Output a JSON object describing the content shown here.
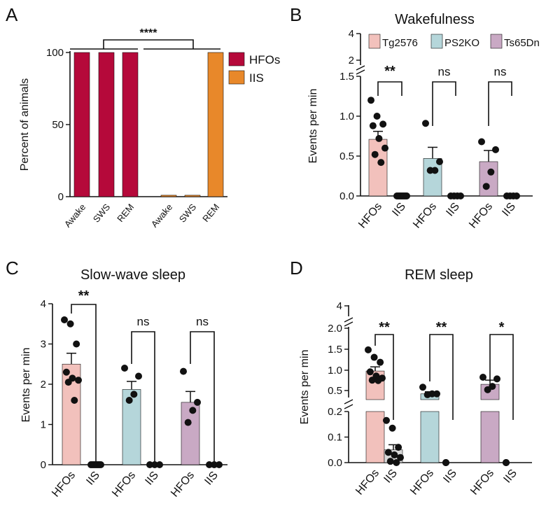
{
  "colors": {
    "Tg2576": "#f2c1bc",
    "PS2KO": "#b5d6da",
    "Ts65Dn": "#c9a9c4",
    "HFOs_A": "#b5093a",
    "IIS_A": "#e8882a",
    "errorbar": "#111111",
    "dot": "#111111"
  },
  "chart_data": [
    {
      "panel": "A",
      "type": "bar",
      "title": "",
      "ylabel": "Percent of animals",
      "ylim": [
        0,
        100
      ],
      "yticks": [
        "0",
        "50",
        "100"
      ],
      "groups": [
        {
          "name": "HFOs",
          "categories": [
            "Awake",
            "SWS",
            "REM"
          ],
          "values": [
            100,
            100,
            100
          ]
        },
        {
          "name": "IIS",
          "categories": [
            "Awake",
            "SWS",
            "REM"
          ],
          "values": [
            1,
            1,
            100
          ]
        }
      ],
      "legend": [
        "HFOs",
        "IIS"
      ],
      "legend_position": "right",
      "significance": "****"
    },
    {
      "panel": "B",
      "type": "bar",
      "title": "Wakefulness",
      "ylabel": "Events per min",
      "yticks_lower": [
        "0.0",
        "0.5",
        "1.0",
        "1.5"
      ],
      "yticks_upper": [
        "2",
        "4"
      ],
      "legend": [
        "Tg2576",
        "PS2KO",
        "Ts65Dn"
      ],
      "legend_position": "top",
      "categories": [
        "HFOs",
        "IIS",
        "HFOs",
        "IIS",
        "HFOs",
        "IIS"
      ],
      "series": [
        {
          "name": "Tg2576",
          "HFOs": 0.71,
          "HFOs_sem": 0.1,
          "IIS": 0.0,
          "HFOs_points": [
            1.2,
            1.0,
            0.9,
            0.88,
            0.72,
            0.6,
            0.52,
            0.42
          ],
          "IIS_points": [
            0,
            0,
            0,
            0,
            0,
            0,
            0,
            0
          ],
          "significance": "**"
        },
        {
          "name": "PS2KO",
          "HFOs": 0.47,
          "HFOs_sem": 0.14,
          "IIS": 0.0,
          "HFOs_points": [
            0.91,
            0.43,
            0.32,
            0.32
          ],
          "IIS_points": [
            0,
            0,
            0,
            0
          ],
          "significance": "ns"
        },
        {
          "name": "Ts65Dn",
          "HFOs": 0.43,
          "HFOs_sem": 0.14,
          "IIS": 0.0,
          "HFOs_points": [
            0.68,
            0.58,
            0.3,
            0.12
          ],
          "IIS_points": [
            0,
            0,
            0,
            0
          ],
          "significance": "ns"
        }
      ]
    },
    {
      "panel": "C",
      "type": "bar",
      "title": "Slow-wave sleep",
      "ylabel": "Events per min",
      "ylim": [
        0,
        4
      ],
      "yticks": [
        "0",
        "1",
        "2",
        "3",
        "4"
      ],
      "categories": [
        "HFOs",
        "IIS",
        "HFOs",
        "IIS",
        "HFOs",
        "IIS"
      ],
      "series": [
        {
          "name": "Tg2576",
          "HFOs": 2.5,
          "HFOs_sem": 0.27,
          "IIS": 0.0,
          "HFOs_points": [
            3.6,
            3.5,
            3.0,
            2.3,
            2.15,
            2.1,
            2.05,
            1.6
          ],
          "IIS_points": [
            0,
            0,
            0,
            0,
            0,
            0,
            0,
            0
          ],
          "significance": "**"
        },
        {
          "name": "PS2KO",
          "HFOs": 1.87,
          "HFOs_sem": 0.2,
          "IIS": 0.0,
          "HFOs_points": [
            2.4,
            2.2,
            1.75,
            1.6
          ],
          "IIS_points": [
            0,
            0,
            0
          ],
          "significance": "ns"
        },
        {
          "name": "Ts65Dn",
          "HFOs": 1.55,
          "HFOs_sem": 0.27,
          "IIS": 0.0,
          "HFOs_points": [
            2.32,
            1.55,
            1.35,
            1.05
          ],
          "IIS_points": [
            0,
            0,
            0
          ],
          "significance": "ns"
        }
      ]
    },
    {
      "panel": "D",
      "type": "bar",
      "title": "REM sleep",
      "ylabel": "Events per min",
      "yticks_lower": [
        "0.0",
        "0.1",
        "0.2"
      ],
      "yticks_middle": [
        "0.5",
        "1.0",
        "1.5",
        "2.0"
      ],
      "yticks_upper": [
        "4"
      ],
      "categories": [
        "HFOs",
        "IIS",
        "HFOs",
        "IIS",
        "HFOs",
        "IIS"
      ],
      "series": [
        {
          "name": "Tg2576",
          "HFOs": 0.97,
          "HFOs_sem": 0.1,
          "IIS": 0.05,
          "IIS_sem": 0.02,
          "HFOs_points": [
            1.48,
            1.3,
            1.18,
            0.95,
            0.85,
            0.8,
            0.75,
            0.74
          ],
          "IIS_points": [
            0.165,
            0.135,
            0.06,
            0.04,
            0.03,
            0.02,
            0.005,
            0.0
          ],
          "significance": "**"
        },
        {
          "name": "PS2KO",
          "HFOs": 0.42,
          "HFOs_sem": 0.05,
          "IIS": 0.0,
          "HFOs_points": [
            0.58,
            0.42,
            0.42,
            0.4
          ],
          "IIS_points": [
            0,
            0,
            0
          ],
          "significance": "**"
        },
        {
          "name": "Ts65Dn",
          "HFOs": 0.65,
          "HFOs_sem": 0.1,
          "IIS": 0.0,
          "HFOs_points": [
            0.82,
            0.78,
            0.6,
            0.52
          ],
          "IIS_points": [
            0,
            0,
            0
          ],
          "significance": "*"
        }
      ]
    }
  ]
}
